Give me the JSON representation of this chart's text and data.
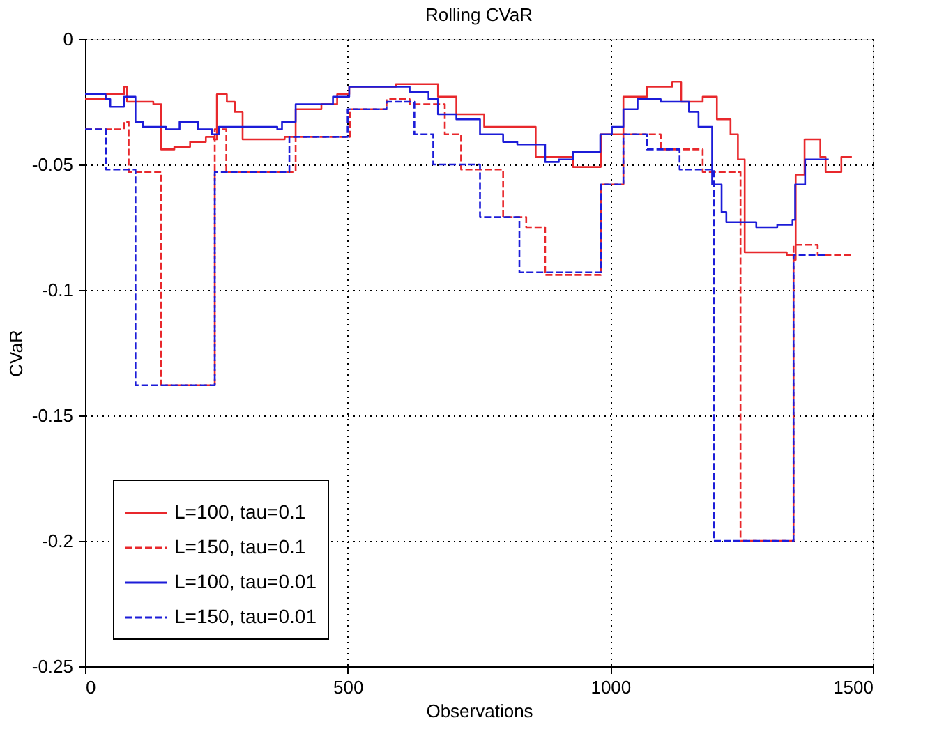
{
  "chart_data": {
    "type": "step",
    "title": "Rolling CVaR",
    "xlabel": "Observations",
    "ylabel": "CVaR",
    "xlim": [
      0,
      1500
    ],
    "xticks": [
      0,
      500,
      1000,
      1500
    ],
    "ylim": [
      -0.25,
      0
    ],
    "yticks": [
      -0.25,
      -0.2,
      -0.15,
      -0.1,
      -0.05,
      0
    ],
    "grid": true,
    "legend": "bottom left",
    "series": [
      {
        "name": "L=100, tau=0.1",
        "color": "#e8282c",
        "line_style": "solid",
        "x": [
          0,
          40,
          74,
          80,
          130,
          145,
          170,
          200,
          230,
          245,
          251,
          270,
          285,
          300,
          380,
          401,
          450,
          480,
          503,
          592,
          672,
          707,
          760,
          840,
          858,
          929,
          982,
          1025,
          1070,
          1118,
          1135,
          1176,
          1203,
          1229,
          1243,
          1256,
          1336,
          1349,
          1353,
          1370,
          1390,
          1400,
          1410,
          1430,
          1440,
          1460
        ],
        "values": [
          -0.024,
          -0.022,
          -0.019,
          -0.025,
          -0.026,
          -0.044,
          -0.043,
          -0.041,
          -0.039,
          -0.04,
          -0.022,
          -0.025,
          -0.029,
          -0.04,
          -0.039,
          -0.028,
          -0.026,
          -0.022,
          -0.019,
          -0.018,
          -0.023,
          -0.03,
          -0.035,
          -0.035,
          -0.047,
          -0.051,
          -0.038,
          -0.023,
          -0.019,
          -0.017,
          -0.025,
          -0.023,
          -0.032,
          -0.038,
          -0.048,
          -0.085,
          -0.086,
          -0.088,
          -0.054,
          -0.04,
          -0.04,
          -0.047,
          -0.053,
          -0.053,
          -0.047,
          -0.047
        ]
      },
      {
        "name": "L=150, tau=0.1",
        "color": "#e8282c",
        "line_style": "dashed",
        "x": [
          0,
          74,
          83,
          145,
          247,
          269,
          401,
          504,
          574,
          618,
          685,
          716,
          796,
          840,
          876,
          982,
          1025,
          1096,
          1176,
          1248,
          1349,
          1395,
          1460
        ],
        "values": [
          -0.036,
          -0.033,
          -0.053,
          -0.138,
          -0.036,
          -0.053,
          -0.039,
          -0.028,
          -0.024,
          -0.026,
          -0.038,
          -0.052,
          -0.071,
          -0.075,
          -0.094,
          -0.058,
          -0.038,
          -0.044,
          -0.053,
          -0.2,
          -0.082,
          -0.086,
          -0.086
        ]
      },
      {
        "name": "L=100, tau=0.01",
        "color": "#1c1cd8",
        "line_style": "solid",
        "x": [
          0,
          39,
          48,
          74,
          96,
          110,
          154,
          180,
          215,
          242,
          255,
          366,
          375,
          401,
          472,
          503,
          574,
          618,
          654,
          672,
          707,
          752,
          796,
          823,
          876,
          902,
          929,
          981,
          1003,
          1025,
          1052,
          1096,
          1150,
          1168,
          1194,
          1212,
          1221,
          1278,
          1318,
          1347,
          1352,
          1371,
          1416
        ],
        "values": [
          -0.022,
          -0.024,
          -0.027,
          -0.023,
          -0.033,
          -0.035,
          -0.036,
          -0.033,
          -0.036,
          -0.038,
          -0.035,
          -0.036,
          -0.033,
          -0.026,
          -0.023,
          -0.019,
          -0.019,
          -0.021,
          -0.024,
          -0.03,
          -0.032,
          -0.038,
          -0.041,
          -0.042,
          -0.049,
          -0.048,
          -0.045,
          -0.038,
          -0.035,
          -0.028,
          -0.024,
          -0.025,
          -0.029,
          -0.035,
          -0.058,
          -0.069,
          -0.073,
          -0.075,
          -0.074,
          -0.072,
          -0.058,
          -0.048,
          -0.048
        ]
      },
      {
        "name": "L=150, tau=0.01",
        "color": "#1c1cd8",
        "line_style": "dashed",
        "x": [
          0,
          40,
          96,
          247,
          389,
          500,
          574,
          627,
          663,
          752,
          827,
          982,
          1025,
          1070,
          1132,
          1197,
          1349,
          1411
        ],
        "values": [
          -0.036,
          -0.052,
          -0.138,
          -0.053,
          -0.039,
          -0.028,
          -0.025,
          -0.038,
          -0.05,
          -0.071,
          -0.093,
          -0.058,
          -0.038,
          -0.044,
          -0.052,
          -0.2,
          -0.086,
          -0.086
        ]
      }
    ]
  }
}
